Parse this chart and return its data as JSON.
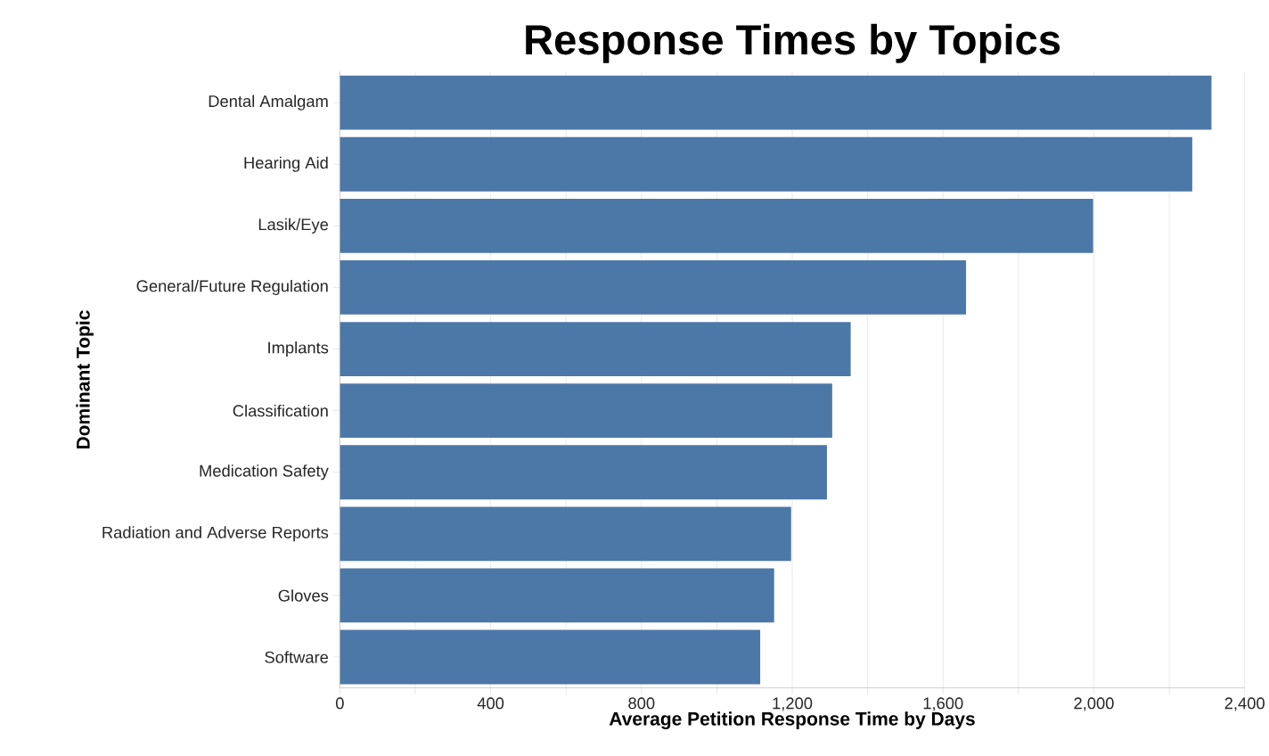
{
  "chart_data": {
    "type": "bar",
    "orientation": "horizontal",
    "title": "Response Times by Topics",
    "xlabel": "Average Petition Response Time by Days",
    "ylabel": "Dominant Topic",
    "categories": [
      "Dental Amalgam",
      "Hearing Aid",
      "Lasik/Eye",
      "General/Future Regulation",
      "Implants",
      "Classification",
      "Medication Safety",
      "Radiation and Adverse Reports",
      "Gloves",
      "Software"
    ],
    "values": [
      2312,
      2261,
      1998,
      1661,
      1355,
      1306,
      1292,
      1197,
      1152,
      1115
    ],
    "color": "#4c78a8",
    "xlim": [
      0,
      2400
    ],
    "xticks": [
      0,
      {
        "value": 200,
        "label": null
      },
      400,
      {
        "value": 600,
        "label": null
      },
      800,
      {
        "value": 1000,
        "label": null
      },
      {
        "value": 1200,
        "label": "1,200"
      },
      {
        "value": 1400,
        "label": null
      },
      {
        "value": 1600,
        "label": "1,600"
      },
      {
        "value": 1800,
        "label": null
      },
      {
        "value": 2000,
        "label": "2,000"
      },
      {
        "value": 2200,
        "label": null
      },
      {
        "value": 2400,
        "label": "2,400"
      }
    ],
    "grid": "x"
  }
}
